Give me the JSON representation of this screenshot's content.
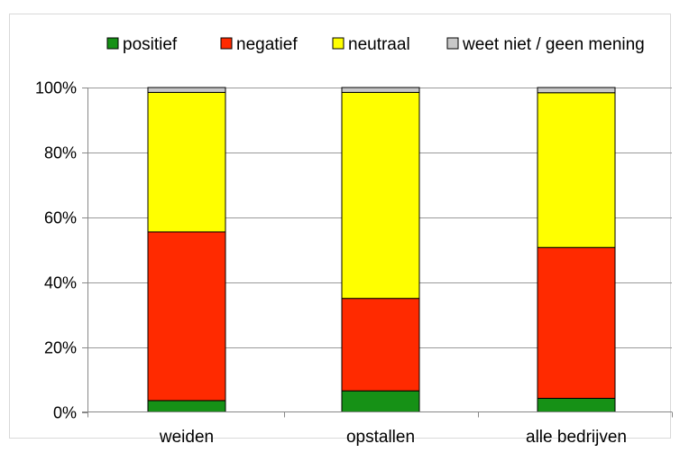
{
  "chart_data": {
    "type": "bar",
    "stacked": true,
    "categories": [
      "weiden",
      "opstallen",
      "alle bedrijven"
    ],
    "series": [
      {
        "name": "positief",
        "color": "#169116",
        "values": [
          3.5,
          6.5,
          4.2
        ]
      },
      {
        "name": "negatief",
        "color": "#ff2a00",
        "values": [
          52,
          28.5,
          46.5
        ]
      },
      {
        "name": "neutraal",
        "color": "#ffff00",
        "values": [
          43,
          63.5,
          47.7
        ]
      },
      {
        "name": "weet niet / geen mening",
        "color": "#c8c8c8",
        "values": [
          1.5,
          1.5,
          1.6
        ]
      }
    ],
    "y_ticks": [
      "0%",
      "20%",
      "40%",
      "60%",
      "80%",
      "100%"
    ],
    "ylim": [
      0,
      100
    ],
    "title": "",
    "xlabel": "",
    "ylabel": "",
    "legend_position": "top",
    "grid": true
  }
}
